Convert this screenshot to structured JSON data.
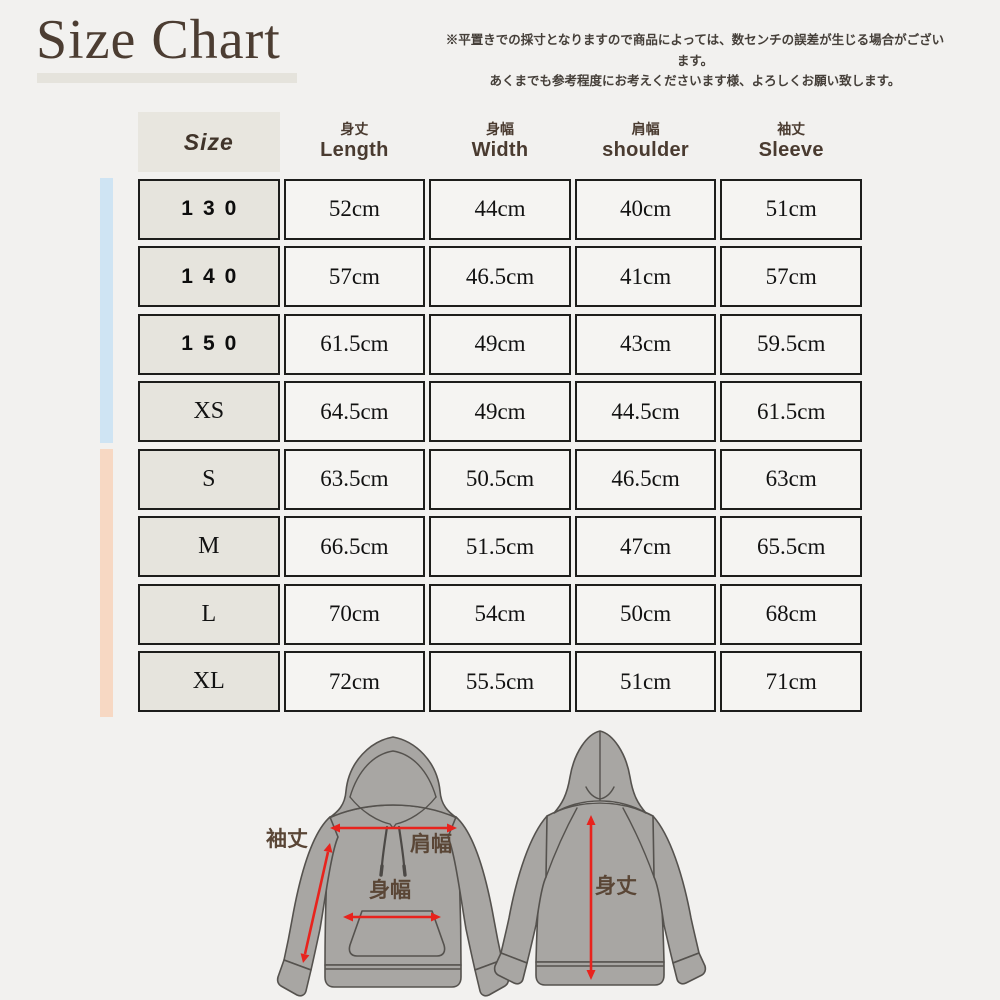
{
  "page": {
    "background": "#f2f1ef"
  },
  "header": {
    "title": "Size Chart",
    "note_line1": "※平置きでの採寸となりますので商品によっては、数センチの誤差が生じる場合がございます。",
    "note_line2": "あくまでも参考程度にお考えくださいます様、よろしくお願い致します。"
  },
  "table": {
    "size_header": "Size",
    "columns": [
      {
        "jp": "身丈",
        "en": "Length",
        "key": "length"
      },
      {
        "jp": "身幅",
        "en": "Width",
        "key": "width"
      },
      {
        "jp": "肩幅",
        "en": "shoulder",
        "key": "shoulder"
      },
      {
        "jp": "袖丈",
        "en": "Sleeve",
        "key": "sleeve"
      }
    ],
    "rows": [
      {
        "size": "130",
        "style": "numeric",
        "length": "52cm",
        "width": "44cm",
        "shoulder": "40cm",
        "sleeve": "51cm"
      },
      {
        "size": "140",
        "style": "numeric",
        "length": "57cm",
        "width": "46.5cm",
        "shoulder": "41cm",
        "sleeve": "57cm"
      },
      {
        "size": "150",
        "style": "numeric",
        "length": "61.5cm",
        "width": "49cm",
        "shoulder": "43cm",
        "sleeve": "59.5cm"
      },
      {
        "size": "XS",
        "style": "letter",
        "length": "64.5cm",
        "width": "49cm",
        "shoulder": "44.5cm",
        "sleeve": "61.5cm"
      },
      {
        "size": "S",
        "style": "letter",
        "length": "63.5cm",
        "width": "50.5cm",
        "shoulder": "46.5cm",
        "sleeve": "63cm"
      },
      {
        "size": "M",
        "style": "letter",
        "length": "66.5cm",
        "width": "51.5cm",
        "shoulder": "47cm",
        "sleeve": "65.5cm"
      },
      {
        "size": "L",
        "style": "letter",
        "length": "70cm",
        "width": "54cm",
        "shoulder": "50cm",
        "sleeve": "68cm"
      },
      {
        "size": "XL",
        "style": "letter",
        "length": "72cm",
        "width": "55.5cm",
        "shoulder": "51cm",
        "sleeve": "71cm"
      }
    ]
  },
  "side_bars": {
    "top_color": "#cfe4f3",
    "bottom_color": "#f7d8c3"
  },
  "diagram": {
    "labels": {
      "sleeve": "袖丈",
      "shoulder": "肩幅",
      "width": "身幅",
      "length": "身丈"
    },
    "arrow_color": "#e8231d",
    "garment_fill": "#a8a6a3",
    "garment_stroke": "#55524e",
    "label_color": "#5a4636"
  }
}
